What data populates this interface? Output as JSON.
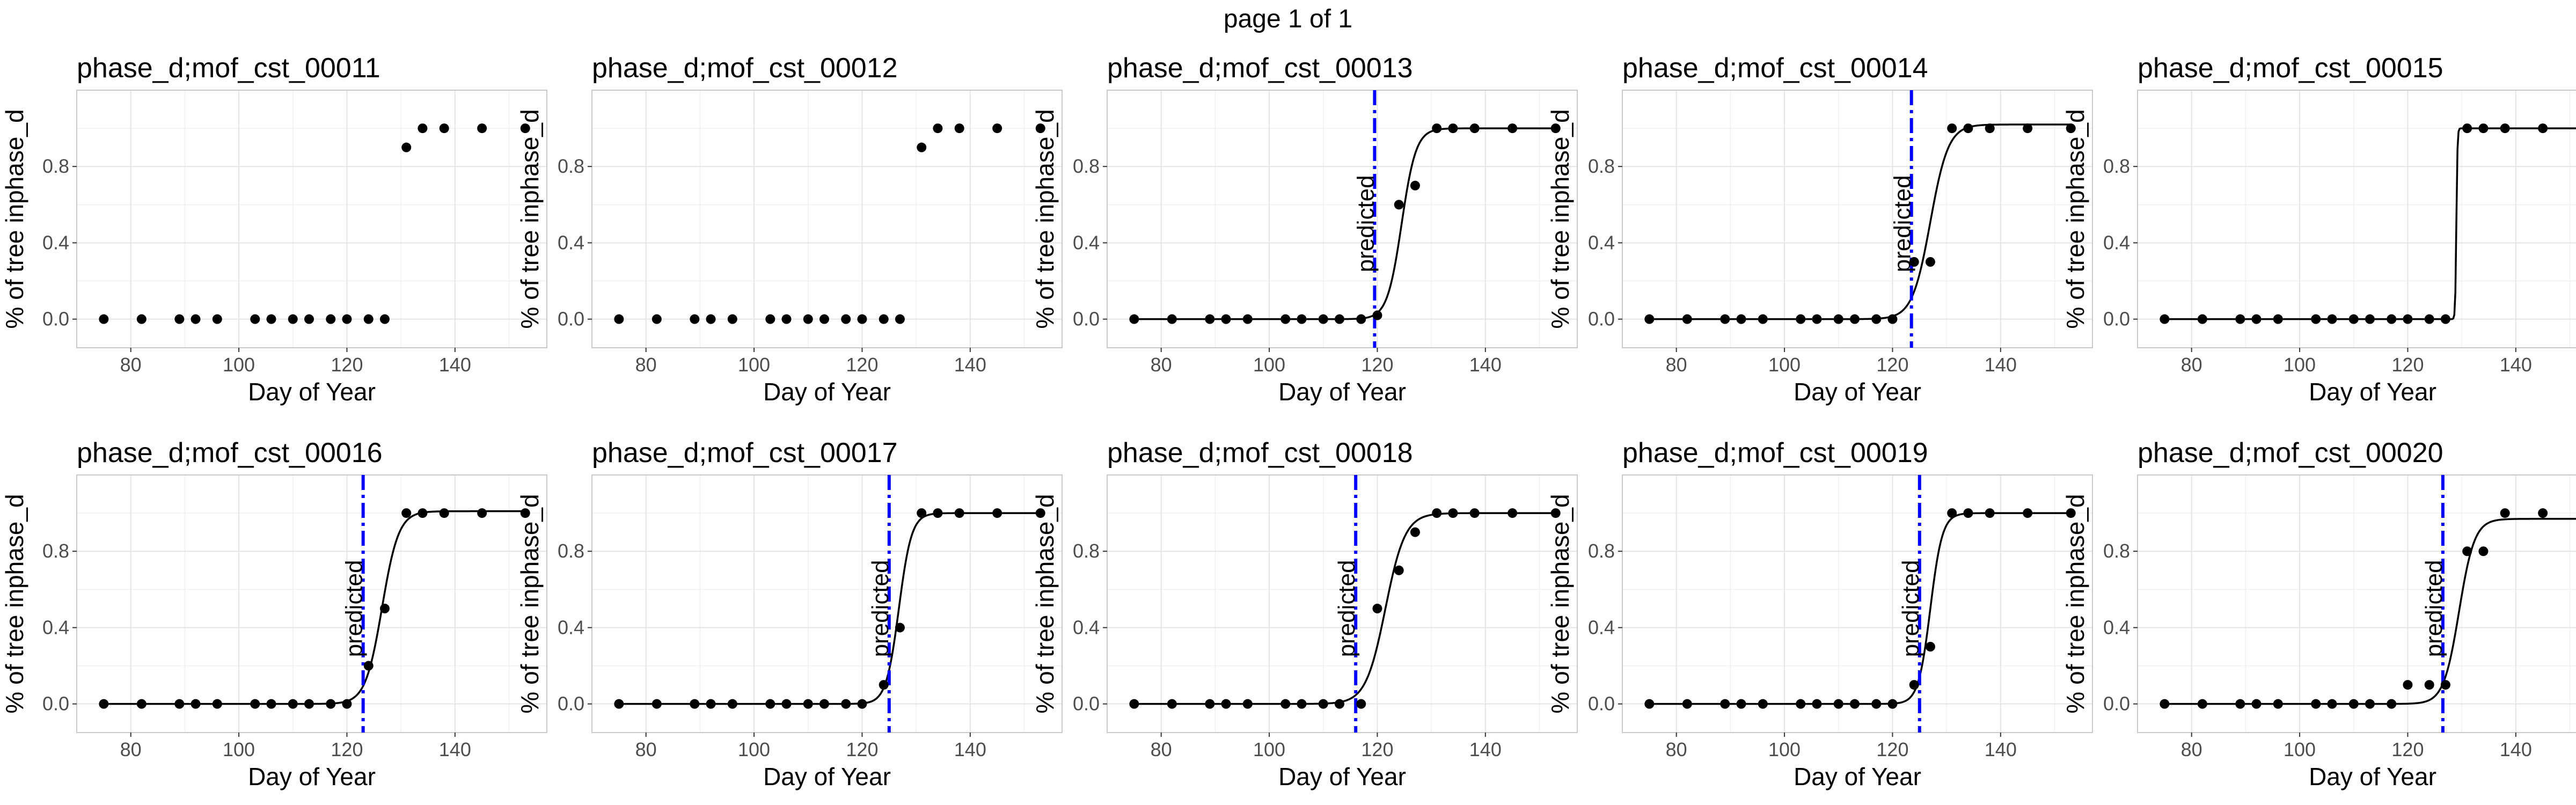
{
  "page_title": "page 1 of 1",
  "chart_data": [
    {
      "type": "scatter",
      "title": "phase_d;mof_cst_00011",
      "xlabel": "Day of Year",
      "ylabel": "% of tree inphase_d",
      "xlim": [
        70,
        157
      ],
      "ylim": [
        -0.15,
        1.2
      ],
      "xticks": [
        80,
        100,
        120,
        140
      ],
      "yticks": [
        0.0,
        0.4,
        0.8
      ],
      "ytick_labels": [
        "0.0",
        "0.4",
        "0.8"
      ],
      "grid": true,
      "x": [
        75,
        82,
        89,
        92,
        96,
        103,
        106,
        110,
        113,
        117,
        120,
        124,
        127,
        131,
        134,
        138,
        145,
        153
      ],
      "y": [
        0,
        0,
        0,
        0,
        0,
        0,
        0,
        0,
        0,
        0,
        0,
        0,
        0,
        0.9,
        1,
        1,
        1,
        1
      ]
    },
    {
      "type": "scatter",
      "title": "phase_d;mof_cst_00012",
      "xlabel": "Day of Year",
      "ylabel": "% of tree inphase_d",
      "xlim": [
        70,
        157
      ],
      "ylim": [
        -0.15,
        1.2
      ],
      "xticks": [
        80,
        100,
        120,
        140
      ],
      "yticks": [
        0.0,
        0.4,
        0.8
      ],
      "ytick_labels": [
        "0.0",
        "0.4",
        "0.8"
      ],
      "grid": true,
      "x": [
        75,
        82,
        89,
        92,
        96,
        103,
        106,
        110,
        113,
        117,
        120,
        124,
        127,
        131,
        134,
        138,
        145,
        153
      ],
      "y": [
        0,
        0,
        0,
        0,
        0,
        0,
        0,
        0,
        0,
        0,
        0,
        0,
        0,
        0.9,
        1,
        1,
        1,
        1
      ]
    },
    {
      "type": "scatter",
      "title": "phase_d;mof_cst_00013",
      "xlabel": "Day of Year",
      "ylabel": "% of tree inphase_d",
      "xlim": [
        70,
        157
      ],
      "ylim": [
        -0.15,
        1.2
      ],
      "xticks": [
        80,
        100,
        120,
        140
      ],
      "yticks": [
        0.0,
        0.4,
        0.8
      ],
      "ytick_labels": [
        "0.0",
        "0.4",
        "0.8"
      ],
      "grid": true,
      "x": [
        75,
        82,
        89,
        92,
        96,
        103,
        106,
        110,
        113,
        117,
        120,
        124,
        127,
        131,
        134,
        138,
        145,
        153
      ],
      "y": [
        0,
        0,
        0,
        0,
        0,
        0,
        0,
        0,
        0,
        0,
        0.02,
        0.6,
        0.7,
        1,
        1,
        1,
        1,
        1
      ],
      "fit": {
        "type": "logistic",
        "max": 1.0,
        "midpoint": 124.5,
        "rate": 0.75
      },
      "predicted": {
        "x": 119.5,
        "label": "predicted"
      }
    },
    {
      "type": "scatter",
      "title": "phase_d;mof_cst_00014",
      "xlabel": "Day of Year",
      "ylabel": "% of tree inphase_d",
      "xlim": [
        70,
        157
      ],
      "ylim": [
        -0.15,
        1.2
      ],
      "xticks": [
        80,
        100,
        120,
        140
      ],
      "yticks": [
        0.0,
        0.4,
        0.8
      ],
      "ytick_labels": [
        "0.0",
        "0.4",
        "0.8"
      ],
      "grid": true,
      "x": [
        75,
        82,
        89,
        92,
        96,
        103,
        106,
        110,
        113,
        117,
        120,
        124,
        127,
        131,
        134,
        138,
        145,
        153
      ],
      "y": [
        0,
        0,
        0,
        0,
        0,
        0,
        0,
        0,
        0,
        0,
        0,
        0.3,
        0.3,
        1,
        1,
        1,
        1,
        1
      ],
      "fit": {
        "type": "logistic",
        "max": 1.02,
        "midpoint": 127.0,
        "rate": 0.6
      },
      "predicted": {
        "x": 123.5,
        "label": "predicted"
      }
    },
    {
      "type": "scatter",
      "title": "phase_d;mof_cst_00015",
      "xlabel": "Day of Year",
      "ylabel": "% of tree inphase_d",
      "xlim": [
        70,
        157
      ],
      "ylim": [
        -0.15,
        1.2
      ],
      "xticks": [
        80,
        100,
        120,
        140
      ],
      "yticks": [
        0.0,
        0.4,
        0.8
      ],
      "ytick_labels": [
        "0.0",
        "0.4",
        "0.8"
      ],
      "grid": true,
      "x": [
        75,
        82,
        89,
        92,
        96,
        103,
        106,
        110,
        113,
        117,
        120,
        124,
        127,
        131,
        134,
        138,
        145,
        153
      ],
      "y": [
        0,
        0,
        0,
        0,
        0,
        0,
        0,
        0,
        0,
        0,
        0,
        0,
        0,
        1,
        1,
        1,
        1,
        1
      ],
      "fit": {
        "type": "logistic",
        "max": 1.0,
        "midpoint": 129.0,
        "rate": 10
      }
    },
    {
      "type": "scatter",
      "title": "phase_d;mof_cst_00016",
      "xlabel": "Day of Year",
      "ylabel": "% of tree inphase_d",
      "xlim": [
        70,
        157
      ],
      "ylim": [
        -0.15,
        1.2
      ],
      "xticks": [
        80,
        100,
        120,
        140
      ],
      "yticks": [
        0.0,
        0.4,
        0.8
      ],
      "ytick_labels": [
        "0.0",
        "0.4",
        "0.8"
      ],
      "grid": true,
      "x": [
        75,
        82,
        89,
        92,
        96,
        103,
        106,
        110,
        113,
        117,
        120,
        124,
        127,
        131,
        134,
        138,
        145,
        153
      ],
      "y": [
        0,
        0,
        0,
        0,
        0,
        0,
        0,
        0,
        0,
        0,
        0,
        0.2,
        0.5,
        1,
        1,
        1,
        1,
        1
      ],
      "fit": {
        "type": "logistic",
        "max": 1.01,
        "midpoint": 126.5,
        "rate": 0.65
      },
      "predicted": {
        "x": 123.0,
        "label": "predicted"
      }
    },
    {
      "type": "scatter",
      "title": "phase_d;mof_cst_00017",
      "xlabel": "Day of Year",
      "ylabel": "% of tree inphase_d",
      "xlim": [
        70,
        157
      ],
      "ylim": [
        -0.15,
        1.2
      ],
      "xticks": [
        80,
        100,
        120,
        140
      ],
      "yticks": [
        0.0,
        0.4,
        0.8
      ],
      "ytick_labels": [
        "0.0",
        "0.4",
        "0.8"
      ],
      "grid": true,
      "x": [
        75,
        82,
        89,
        92,
        96,
        103,
        106,
        110,
        113,
        117,
        120,
        124,
        127,
        131,
        134,
        138,
        145,
        153
      ],
      "y": [
        0,
        0,
        0,
        0,
        0,
        0,
        0,
        0,
        0,
        0,
        0,
        0.1,
        0.4,
        1,
        1,
        1,
        1,
        1
      ],
      "fit": {
        "type": "logistic",
        "max": 1.0,
        "midpoint": 126.8,
        "rate": 0.85
      },
      "predicted": {
        "x": 125.0,
        "label": "predicted"
      }
    },
    {
      "type": "scatter",
      "title": "phase_d;mof_cst_00018",
      "xlabel": "Day of Year",
      "ylabel": "% of tree inphase_d",
      "xlim": [
        70,
        157
      ],
      "ylim": [
        -0.15,
        1.2
      ],
      "xticks": [
        80,
        100,
        120,
        140
      ],
      "yticks": [
        0.0,
        0.4,
        0.8
      ],
      "ytick_labels": [
        "0.0",
        "0.4",
        "0.8"
      ],
      "grid": true,
      "x": [
        75,
        82,
        89,
        92,
        96,
        103,
        106,
        110,
        113,
        117,
        120,
        124,
        127,
        131,
        134,
        138,
        145,
        153
      ],
      "y": [
        0,
        0,
        0,
        0,
        0,
        0,
        0,
        0,
        0,
        0,
        0.5,
        0.7,
        0.9,
        1,
        1,
        1,
        1,
        1
      ],
      "fit": {
        "type": "logistic",
        "max": 1.0,
        "midpoint": 121.5,
        "rate": 0.55
      },
      "predicted": {
        "x": 116.0,
        "label": "predicted"
      }
    },
    {
      "type": "scatter",
      "title": "phase_d;mof_cst_00019",
      "xlabel": "Day of Year",
      "ylabel": "% of tree inphase_d",
      "xlim": [
        70,
        157
      ],
      "ylim": [
        -0.15,
        1.2
      ],
      "xticks": [
        80,
        100,
        120,
        140
      ],
      "yticks": [
        0.0,
        0.4,
        0.8
      ],
      "ytick_labels": [
        "0.0",
        "0.4",
        "0.8"
      ],
      "grid": true,
      "x": [
        75,
        82,
        89,
        92,
        96,
        103,
        106,
        110,
        113,
        117,
        120,
        124,
        127,
        131,
        134,
        138,
        145,
        153
      ],
      "y": [
        0,
        0,
        0,
        0,
        0,
        0,
        0,
        0,
        0,
        0,
        0,
        0.1,
        0.3,
        1,
        1,
        1,
        1,
        1
      ],
      "fit": {
        "type": "logistic",
        "max": 1.0,
        "midpoint": 127.0,
        "rate": 0.9
      },
      "predicted": {
        "x": 125.0,
        "label": "predicted"
      }
    },
    {
      "type": "scatter",
      "title": "phase_d;mof_cst_00020",
      "xlabel": "Day of Year",
      "ylabel": "% of tree inphase_d",
      "xlim": [
        70,
        157
      ],
      "ylim": [
        -0.15,
        1.2
      ],
      "xticks": [
        80,
        100,
        120,
        140
      ],
      "yticks": [
        0.0,
        0.4,
        0.8
      ],
      "ytick_labels": [
        "0.0",
        "0.4",
        "0.8"
      ],
      "grid": true,
      "x": [
        75,
        82,
        89,
        92,
        96,
        103,
        106,
        110,
        113,
        117,
        120,
        124,
        127,
        131,
        134,
        138,
        145,
        153
      ],
      "y": [
        0,
        0,
        0,
        0,
        0,
        0,
        0,
        0,
        0,
        0,
        0.1,
        0.1,
        0.1,
        0.8,
        0.8,
        1,
        1,
        1
      ],
      "fit": {
        "type": "logistic",
        "max": 0.97,
        "midpoint": 129.5,
        "rate": 0.7
      },
      "predicted": {
        "x": 126.5,
        "label": "predicted"
      }
    }
  ]
}
